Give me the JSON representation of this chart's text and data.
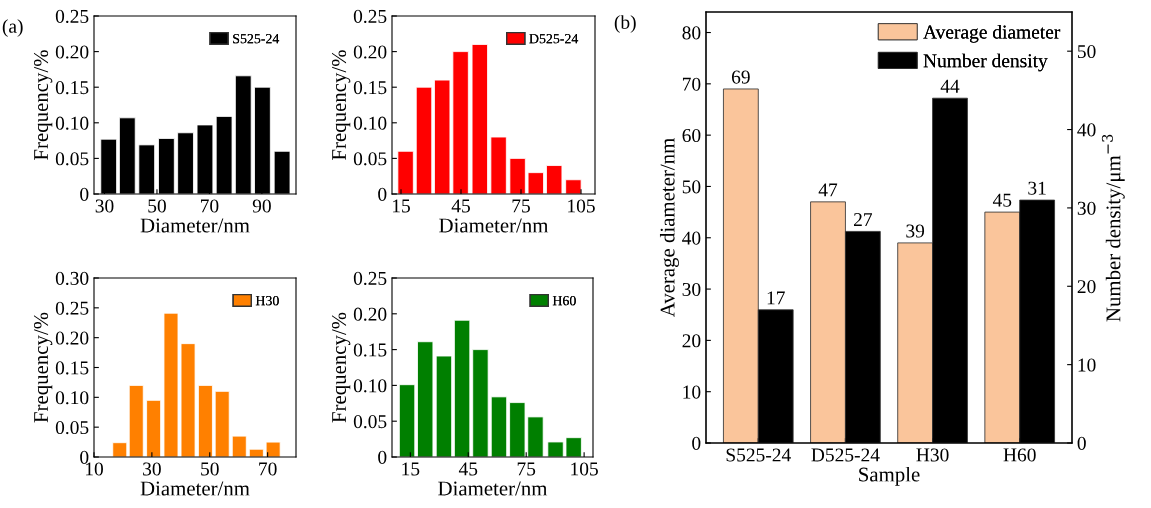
{
  "chart_data": [
    {
      "type": "bar",
      "x": [
        31.6,
        38.7,
        46.1,
        53.6,
        60.9,
        68.3,
        75.6,
        82.9,
        90.2,
        97.7
      ],
      "ylabel": "Frequency/%",
      "xlabel": "Diameter/nm",
      "xlim": [
        26,
        103
      ],
      "xticks": [
        30,
        50,
        70,
        90
      ],
      "ylim": [
        0,
        0.25
      ],
      "yticks": [
        {
          "value": 0,
          "label": "0"
        },
        {
          "value": 0.05,
          "label": "0.05"
        },
        {
          "value": 0.1,
          "label": "0.10"
        },
        {
          "value": 0.15,
          "label": "0.15"
        },
        {
          "value": 0.2,
          "label": "0.20"
        },
        {
          "value": 0.25,
          "label": "0.25"
        }
      ],
      "legend": "top right",
      "annotations": [
        "(a)"
      ],
      "series": [
        {
          "name": "S525-24",
          "color": "#000000",
          "values": [
            0.077,
            0.107,
            0.069,
            0.078,
            0.086,
            0.097,
            0.109,
            0.166,
            0.15,
            0.06
          ]
        }
      ]
    },
    {
      "type": "bar",
      "x": [
        17.3,
        26.5,
        35.6,
        44.8,
        54.4,
        63.8,
        73.3,
        82.4,
        91.6,
        101.2
      ],
      "ylabel": "Frequency/%",
      "xlabel": "Diameter/nm",
      "xlim": [
        10.5,
        112
      ],
      "xticks": [
        15,
        45,
        75,
        105
      ],
      "ylim": [
        0,
        0.25
      ],
      "yticks": [
        {
          "value": 0,
          "label": "0"
        },
        {
          "value": 0.05,
          "label": "0.05"
        },
        {
          "value": 0.1,
          "label": "0.10"
        },
        {
          "value": 0.15,
          "label": "0.15"
        },
        {
          "value": 0.2,
          "label": "0.20"
        },
        {
          "value": 0.25,
          "label": "0.25"
        }
      ],
      "legend": "top right",
      "series": [
        {
          "name": "D525-24",
          "color": "#ff0000",
          "values": [
            0.06,
            0.15,
            0.16,
            0.2,
            0.21,
            0.08,
            0.05,
            0.03,
            0.04,
            0.02
          ]
        }
      ]
    },
    {
      "type": "bar",
      "x": [
        18.9,
        24.6,
        30.6,
        36.6,
        42.5,
        48.5,
        54.3,
        60.2,
        66.1,
        71.9
      ],
      "ylabel": "Frequency/%",
      "xlabel": "Diameter/nm",
      "xlim": [
        10,
        79.8
      ],
      "xticks": [
        10,
        30,
        50,
        70
      ],
      "ylim": [
        0,
        0.3
      ],
      "yticks": [
        {
          "value": 0,
          "label": "0"
        },
        {
          "value": 0.05,
          "label": "0.05"
        },
        {
          "value": 0.1,
          "label": "0.10"
        },
        {
          "value": 0.15,
          "label": "0.15"
        },
        {
          "value": 0.2,
          "label": "0.20"
        },
        {
          "value": 0.25,
          "label": "0.25"
        },
        {
          "value": 0.3,
          "label": "0.30"
        }
      ],
      "legend": "top right",
      "series": [
        {
          "name": "H30",
          "color": "#ff8000",
          "values": [
            0.024,
            0.12,
            0.095,
            0.241,
            0.19,
            0.12,
            0.11,
            0.035,
            0.013,
            0.025
          ]
        }
      ]
    },
    {
      "type": "bar",
      "x": [
        13.3,
        22.7,
        32.4,
        41.8,
        51.3,
        60.9,
        70.4,
        79.8,
        90.2,
        99.6
      ],
      "ylabel": "Frequency/%",
      "xlabel": "Diameter/nm",
      "xlim": [
        5.5,
        109.6
      ],
      "xticks": [
        15,
        45,
        75,
        105
      ],
      "ylim": [
        0,
        0.25
      ],
      "yticks": [
        {
          "value": 0,
          "label": "0"
        },
        {
          "value": 0.05,
          "label": "0.05"
        },
        {
          "value": 0.1,
          "label": "0.10"
        },
        {
          "value": 0.15,
          "label": "0.15"
        },
        {
          "value": 0.2,
          "label": "0.20"
        },
        {
          "value": 0.25,
          "label": "0.25"
        }
      ],
      "legend": "top right",
      "series": [
        {
          "name": "H60",
          "color": "#007f00",
          "values": [
            0.101,
            0.161,
            0.141,
            0.191,
            0.15,
            0.084,
            0.076,
            0.056,
            0.021,
            0.027
          ]
        }
      ]
    },
    {
      "type": "bar",
      "categories": [
        "S525-24",
        "D525-24",
        "H30",
        "H60"
      ],
      "xlabel": "Sample",
      "ylabel": "Average diameter/nm",
      "y2label": "Number density/μm$^{−3}$",
      "ylim": [
        0,
        84
      ],
      "yticks": [
        0,
        10,
        20,
        30,
        40,
        50,
        60,
        70,
        80
      ],
      "y2lim": [
        0,
        55
      ],
      "y2ticks": [
        0,
        10,
        20,
        30,
        40,
        50
      ],
      "legend": "top right",
      "data_labels": true,
      "annotations": [
        "(b)"
      ],
      "series": [
        {
          "name": "Average diameter",
          "color": "#fac59b",
          "values": [
            69,
            47,
            39,
            45
          ]
        },
        {
          "name": "Number density",
          "color": "#000000",
          "axis": "y2",
          "values": [
            17,
            27,
            44,
            31
          ]
        }
      ]
    }
  ]
}
